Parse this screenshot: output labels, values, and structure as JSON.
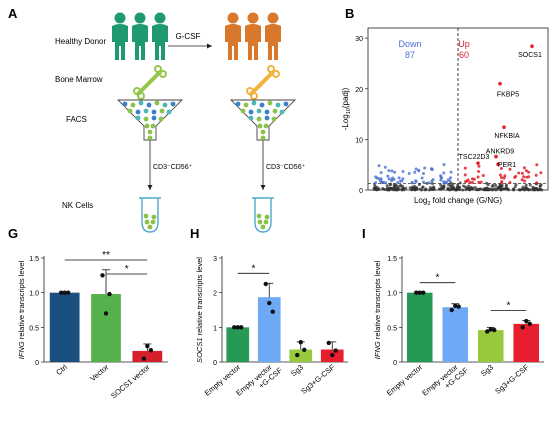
{
  "panel_a": {
    "letter": "A",
    "healthy_donor": "Healthy Donor",
    "treatment": "G-CSF",
    "bone_marrow": "Bone Marrow",
    "facs": "FACS",
    "gate": "CD3⁻CD56⁺",
    "nk_cells": "NK Cells",
    "colors": {
      "healthy": "#1f9a6e",
      "treated": "#d9772b",
      "bone_healthy": "#93c74a",
      "bone_treated": "#f2b23f",
      "cell_green": "#8bc34a",
      "cell_blue": "#3b82c4",
      "cell_teal": "#4fb7b3"
    }
  },
  "chart_data": [
    {
      "panel": "B",
      "type": "scatter",
      "ylabel_prefix": "-Log",
      "ylabel_sub": "10",
      "ylabel_suffix": "(padj)",
      "xlabel_prefix": "Log",
      "xlabel_sub": "2",
      "xlabel_suffix": " fold change (G/NG)",
      "xlim": [
        -4.5,
        4.5
      ],
      "ylim": [
        0,
        32
      ],
      "yticks": [
        0,
        10,
        20,
        30
      ],
      "down_label": "Down",
      "down_count": "87",
      "up_label": "Up",
      "up_count": "60",
      "colors": {
        "down": "#4a6fd6",
        "up": "#e0202a",
        "ns": "#333333"
      },
      "genes": [
        {
          "name": "SOCS1",
          "x": 3.7,
          "y": 28.4
        },
        {
          "name": "FKBP5",
          "x": 2.1,
          "y": 21.0
        },
        {
          "name": "NFKBIA",
          "x": 2.3,
          "y": 12.4
        },
        {
          "name": "ANKRD9",
          "x": 1.9,
          "y": 6.6
        },
        {
          "name": "TSC22D3",
          "x": 1.0,
          "y": 5.3
        },
        {
          "name": "PER1",
          "x": 2.0,
          "y": 5.1
        }
      ]
    },
    {
      "panel": "G",
      "type": "bar",
      "ylabel_italic": "IFNG",
      "ylabel_rest": " relative transcripts level",
      "categories": [
        "Ctrl",
        "Vector",
        "SOCS1 vector"
      ],
      "values": [
        1.0,
        0.98,
        0.16
      ],
      "errors": [
        0.0,
        0.35,
        0.1
      ],
      "points": [
        [
          1.0,
          1.0,
          1.0
        ],
        [
          1.25,
          0.7,
          0.98
        ],
        [
          0.05,
          0.23,
          0.17
        ]
      ],
      "colors": [
        "#1a4f80",
        "#55b14b",
        "#d3202a"
      ],
      "ylim": [
        0,
        1.5
      ],
      "yticks": [
        "0",
        "0.5",
        "1.0",
        "1.5"
      ],
      "significance": [
        {
          "from": 0,
          "to": 2,
          "label": "**"
        },
        {
          "from": 1,
          "to": 2,
          "label": "*"
        }
      ]
    },
    {
      "panel": "H",
      "type": "bar",
      "ylabel_italic": "SOCS1",
      "ylabel_rest": " relative transcripts level",
      "categories": [
        "Empty vector",
        "Empty vector\n+G-CSF",
        "Sg3",
        "Sg3+G-CSF"
      ],
      "values": [
        1.0,
        1.87,
        0.36,
        0.36
      ],
      "errors": [
        0.0,
        0.4,
        0.22,
        0.22
      ],
      "points": [
        [
          1.0,
          1.0,
          1.0
        ],
        [
          2.25,
          1.7,
          1.45
        ],
        [
          0.2,
          0.57,
          0.35
        ],
        [
          0.55,
          0.2,
          0.33
        ]
      ],
      "colors": [
        "#249a55",
        "#6ea9f5",
        "#97c83e",
        "#e81e2e"
      ],
      "ylim": [
        0,
        3
      ],
      "yticks": [
        "0",
        "1",
        "2",
        "3"
      ],
      "significance": [
        {
          "from": 0,
          "to": 1,
          "label": "*"
        }
      ]
    },
    {
      "panel": "I",
      "type": "bar",
      "ylabel_italic": "IFNG",
      "ylabel_rest": " relative transcripts level",
      "categories": [
        "Empty vector",
        "Empty vector\n+G-CSF",
        "Sg3",
        "Sg3+G-CSF"
      ],
      "values": [
        1.0,
        0.79,
        0.46,
        0.55
      ],
      "errors": [
        0.0,
        0.05,
        0.04,
        0.05
      ],
      "points": [
        [
          1.0,
          1.0,
          1.0
        ],
        [
          0.75,
          0.81,
          0.8
        ],
        [
          0.44,
          0.47,
          0.46
        ],
        [
          0.5,
          0.59,
          0.55
        ]
      ],
      "colors": [
        "#249a55",
        "#6ea9f5",
        "#97c83e",
        "#e81e2e"
      ],
      "ylim": [
        0,
        1.5
      ],
      "yticks": [
        "0",
        "0.5",
        "1.0",
        "1.5"
      ],
      "significance": [
        {
          "from": 0,
          "to": 1,
          "label": "*"
        },
        {
          "from": 2,
          "to": 3,
          "label": "*"
        }
      ]
    }
  ]
}
